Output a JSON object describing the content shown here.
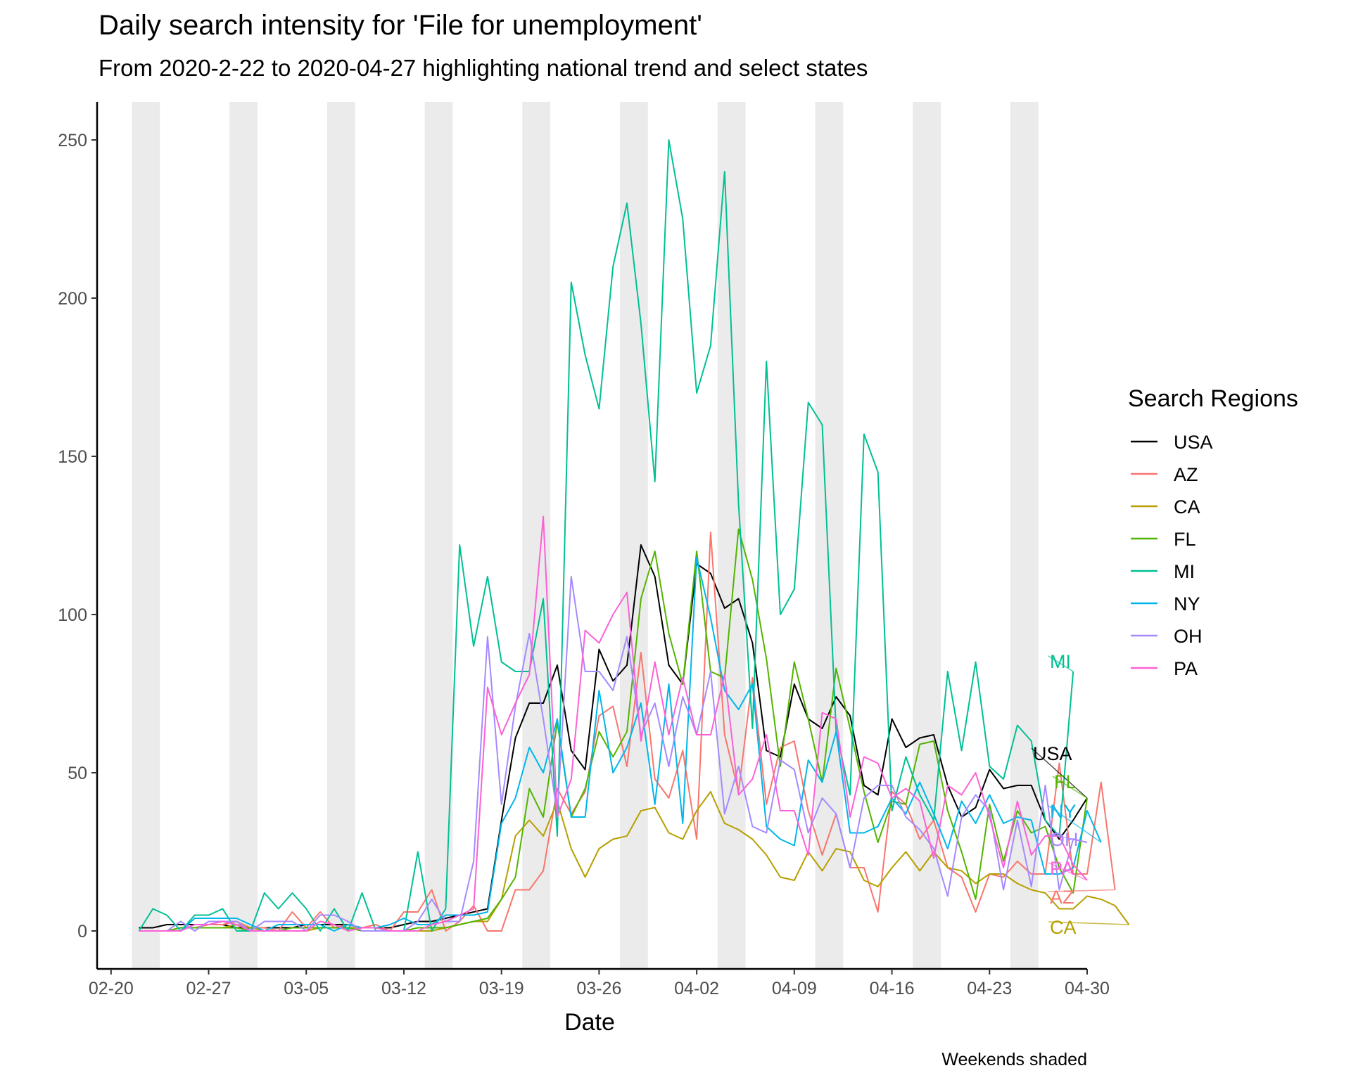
{
  "chart_data": {
    "type": "line",
    "title": "Daily search intensity for 'File for unemployment'",
    "subtitle": "From 2020-2-22 to 2020-04-27 highlighting national trend and select states",
    "xlabel": "Date",
    "ylabel": "",
    "caption": "Weekends shaded",
    "x_start_date": "2020-02-22",
    "x_end_date": "2020-04-27",
    "xlim": [
      "2020-02-19",
      "2020-04-30"
    ],
    "ylim": [
      -12,
      262
    ],
    "x_ticks": [
      {
        "date": "2020-02-20",
        "label": "02-20"
      },
      {
        "date": "2020-02-27",
        "label": "02-27"
      },
      {
        "date": "2020-03-05",
        "label": "03-05"
      },
      {
        "date": "2020-03-12",
        "label": "03-12"
      },
      {
        "date": "2020-03-19",
        "label": "03-19"
      },
      {
        "date": "2020-03-26",
        "label": "03-26"
      },
      {
        "date": "2020-04-02",
        "label": "04-02"
      },
      {
        "date": "2020-04-09",
        "label": "04-09"
      },
      {
        "date": "2020-04-16",
        "label": "04-16"
      },
      {
        "date": "2020-04-23",
        "label": "04-23"
      },
      {
        "date": "2020-04-30",
        "label": "04-30"
      }
    ],
    "y_ticks": [
      0,
      50,
      100,
      150,
      200,
      250
    ],
    "weekends_shaded": true,
    "legend": {
      "title": "Search Regions",
      "position": "right"
    },
    "series": [
      {
        "name": "USA",
        "color": "#000000",
        "values": [
          1,
          1,
          2,
          2,
          2,
          2,
          2,
          1,
          1,
          1,
          1,
          1,
          2,
          2,
          2,
          2,
          1,
          1,
          1,
          2,
          3,
          3,
          4,
          5,
          6,
          7,
          35,
          61,
          72,
          72,
          84,
          57,
          51,
          89,
          79,
          84,
          122,
          112,
          84,
          78,
          116,
          113,
          102,
          105,
          91,
          57,
          55,
          78,
          67,
          64,
          74,
          68,
          46,
          43,
          67,
          58,
          61,
          62,
          46,
          36,
          39,
          51,
          45,
          46,
          46,
          35,
          29,
          35,
          42
        ]
      },
      {
        "name": "AZ",
        "color": "#F8766D",
        "values": [
          0,
          0,
          0,
          1,
          1,
          2,
          2,
          3,
          1,
          1,
          0,
          6,
          1,
          6,
          1,
          2,
          1,
          2,
          0,
          6,
          6,
          13,
          0,
          3,
          8,
          0,
          0,
          13,
          13,
          19,
          45,
          37,
          44,
          68,
          71,
          52,
          88,
          48,
          42,
          57,
          29,
          126,
          62,
          44,
          80,
          40,
          58,
          60,
          38,
          24,
          37,
          20,
          20,
          6,
          44,
          40,
          29,
          35,
          20,
          17,
          6,
          18,
          17,
          22,
          18,
          18,
          53,
          18,
          18,
          47,
          13
        ]
      },
      {
        "name": "CA",
        "color": "#B79F00",
        "values": [
          0,
          0,
          0,
          1,
          1,
          1,
          1,
          2,
          1,
          0,
          0,
          0,
          0,
          1,
          1,
          1,
          1,
          1,
          0,
          0,
          0,
          0,
          1,
          2,
          3,
          3,
          10,
          30,
          35,
          30,
          41,
          26,
          17,
          26,
          29,
          30,
          38,
          39,
          31,
          29,
          38,
          44,
          34,
          32,
          29,
          24,
          17,
          16,
          25,
          19,
          26,
          25,
          16,
          14,
          20,
          25,
          19,
          25,
          20,
          19,
          15,
          18,
          18,
          15,
          13,
          12,
          7,
          7,
          11,
          10,
          8,
          2
        ]
      },
      {
        "name": "FL",
        "color": "#53B400",
        "values": [
          0,
          0,
          0,
          1,
          1,
          1,
          1,
          1,
          0,
          0,
          0,
          1,
          1,
          1,
          1,
          1,
          0,
          0,
          0,
          0,
          1,
          1,
          1,
          2,
          3,
          4,
          10,
          17,
          45,
          36,
          66,
          36,
          45,
          63,
          55,
          63,
          105,
          120,
          94,
          78,
          120,
          82,
          80,
          127,
          111,
          86,
          52,
          85,
          67,
          47,
          83,
          64,
          44,
          28,
          41,
          40,
          59,
          60,
          38,
          25,
          10,
          40,
          22,
          38,
          31,
          33,
          20,
          12,
          42
        ]
      },
      {
        "name": "MI",
        "color": "#00C094",
        "values": [
          0,
          7,
          5,
          0,
          5,
          5,
          7,
          0,
          0,
          12,
          7,
          12,
          7,
          0,
          7,
          0,
          12,
          0,
          0,
          0,
          25,
          0,
          7,
          122,
          90,
          112,
          85,
          82,
          82,
          105,
          30,
          205,
          182,
          165,
          210,
          230,
          192,
          142,
          250,
          225,
          170,
          185,
          240,
          135,
          64,
          180,
          100,
          108,
          167,
          160,
          63,
          43,
          157,
          145,
          38,
          55,
          43,
          35,
          82,
          57,
          85,
          52,
          48,
          65,
          60,
          35,
          30,
          82
        ]
      },
      {
        "name": "NY",
        "color": "#00B6EB",
        "values": [
          0,
          0,
          0,
          0,
          4,
          4,
          4,
          4,
          2,
          0,
          2,
          2,
          2,
          2,
          0,
          2,
          1,
          1,
          2,
          4,
          2,
          2,
          5,
          5,
          5,
          6,
          34,
          42,
          58,
          50,
          67,
          36,
          36,
          76,
          50,
          58,
          72,
          40,
          78,
          34,
          118,
          99,
          76,
          70,
          78,
          33,
          29,
          27,
          54,
          47,
          63,
          31,
          31,
          33,
          42,
          37,
          47,
          37,
          26,
          41,
          34,
          43,
          34,
          36,
          35,
          18,
          18,
          20,
          38,
          28
        ]
      },
      {
        "name": "OH",
        "color": "#A58AFF",
        "values": [
          0,
          0,
          0,
          3,
          0,
          3,
          3,
          3,
          0,
          3,
          3,
          3,
          0,
          5,
          5,
          3,
          0,
          0,
          0,
          0,
          3,
          10,
          3,
          3,
          22,
          93,
          40,
          71,
          94,
          67,
          37,
          112,
          82,
          82,
          76,
          93,
          62,
          72,
          52,
          74,
          62,
          82,
          37,
          52,
          33,
          31,
          54,
          51,
          31,
          42,
          37,
          20,
          42,
          46,
          46,
          36,
          32,
          26,
          11,
          36,
          43,
          38,
          13,
          35,
          14,
          46,
          13,
          29,
          28
        ]
      },
      {
        "name": "PA",
        "color": "#FB61D7",
        "values": [
          0,
          0,
          0,
          0,
          2,
          2,
          3,
          2,
          0,
          0,
          0,
          0,
          0,
          3,
          2,
          0,
          1,
          1,
          0,
          0,
          0,
          2,
          3,
          5,
          7,
          77,
          62,
          72,
          81,
          131,
          36,
          48,
          95,
          91,
          100,
          107,
          60,
          85,
          62,
          80,
          62,
          62,
          81,
          43,
          48,
          62,
          38,
          38,
          24,
          69,
          67,
          36,
          55,
          53,
          42,
          45,
          41,
          23,
          46,
          43,
          50,
          36,
          20,
          41,
          24,
          30,
          30,
          21,
          16
        ]
      }
    ],
    "end_labels": [
      "MI",
      "USA",
      "FL",
      "NY",
      "OH",
      "PA",
      "AZ",
      "CA"
    ]
  }
}
